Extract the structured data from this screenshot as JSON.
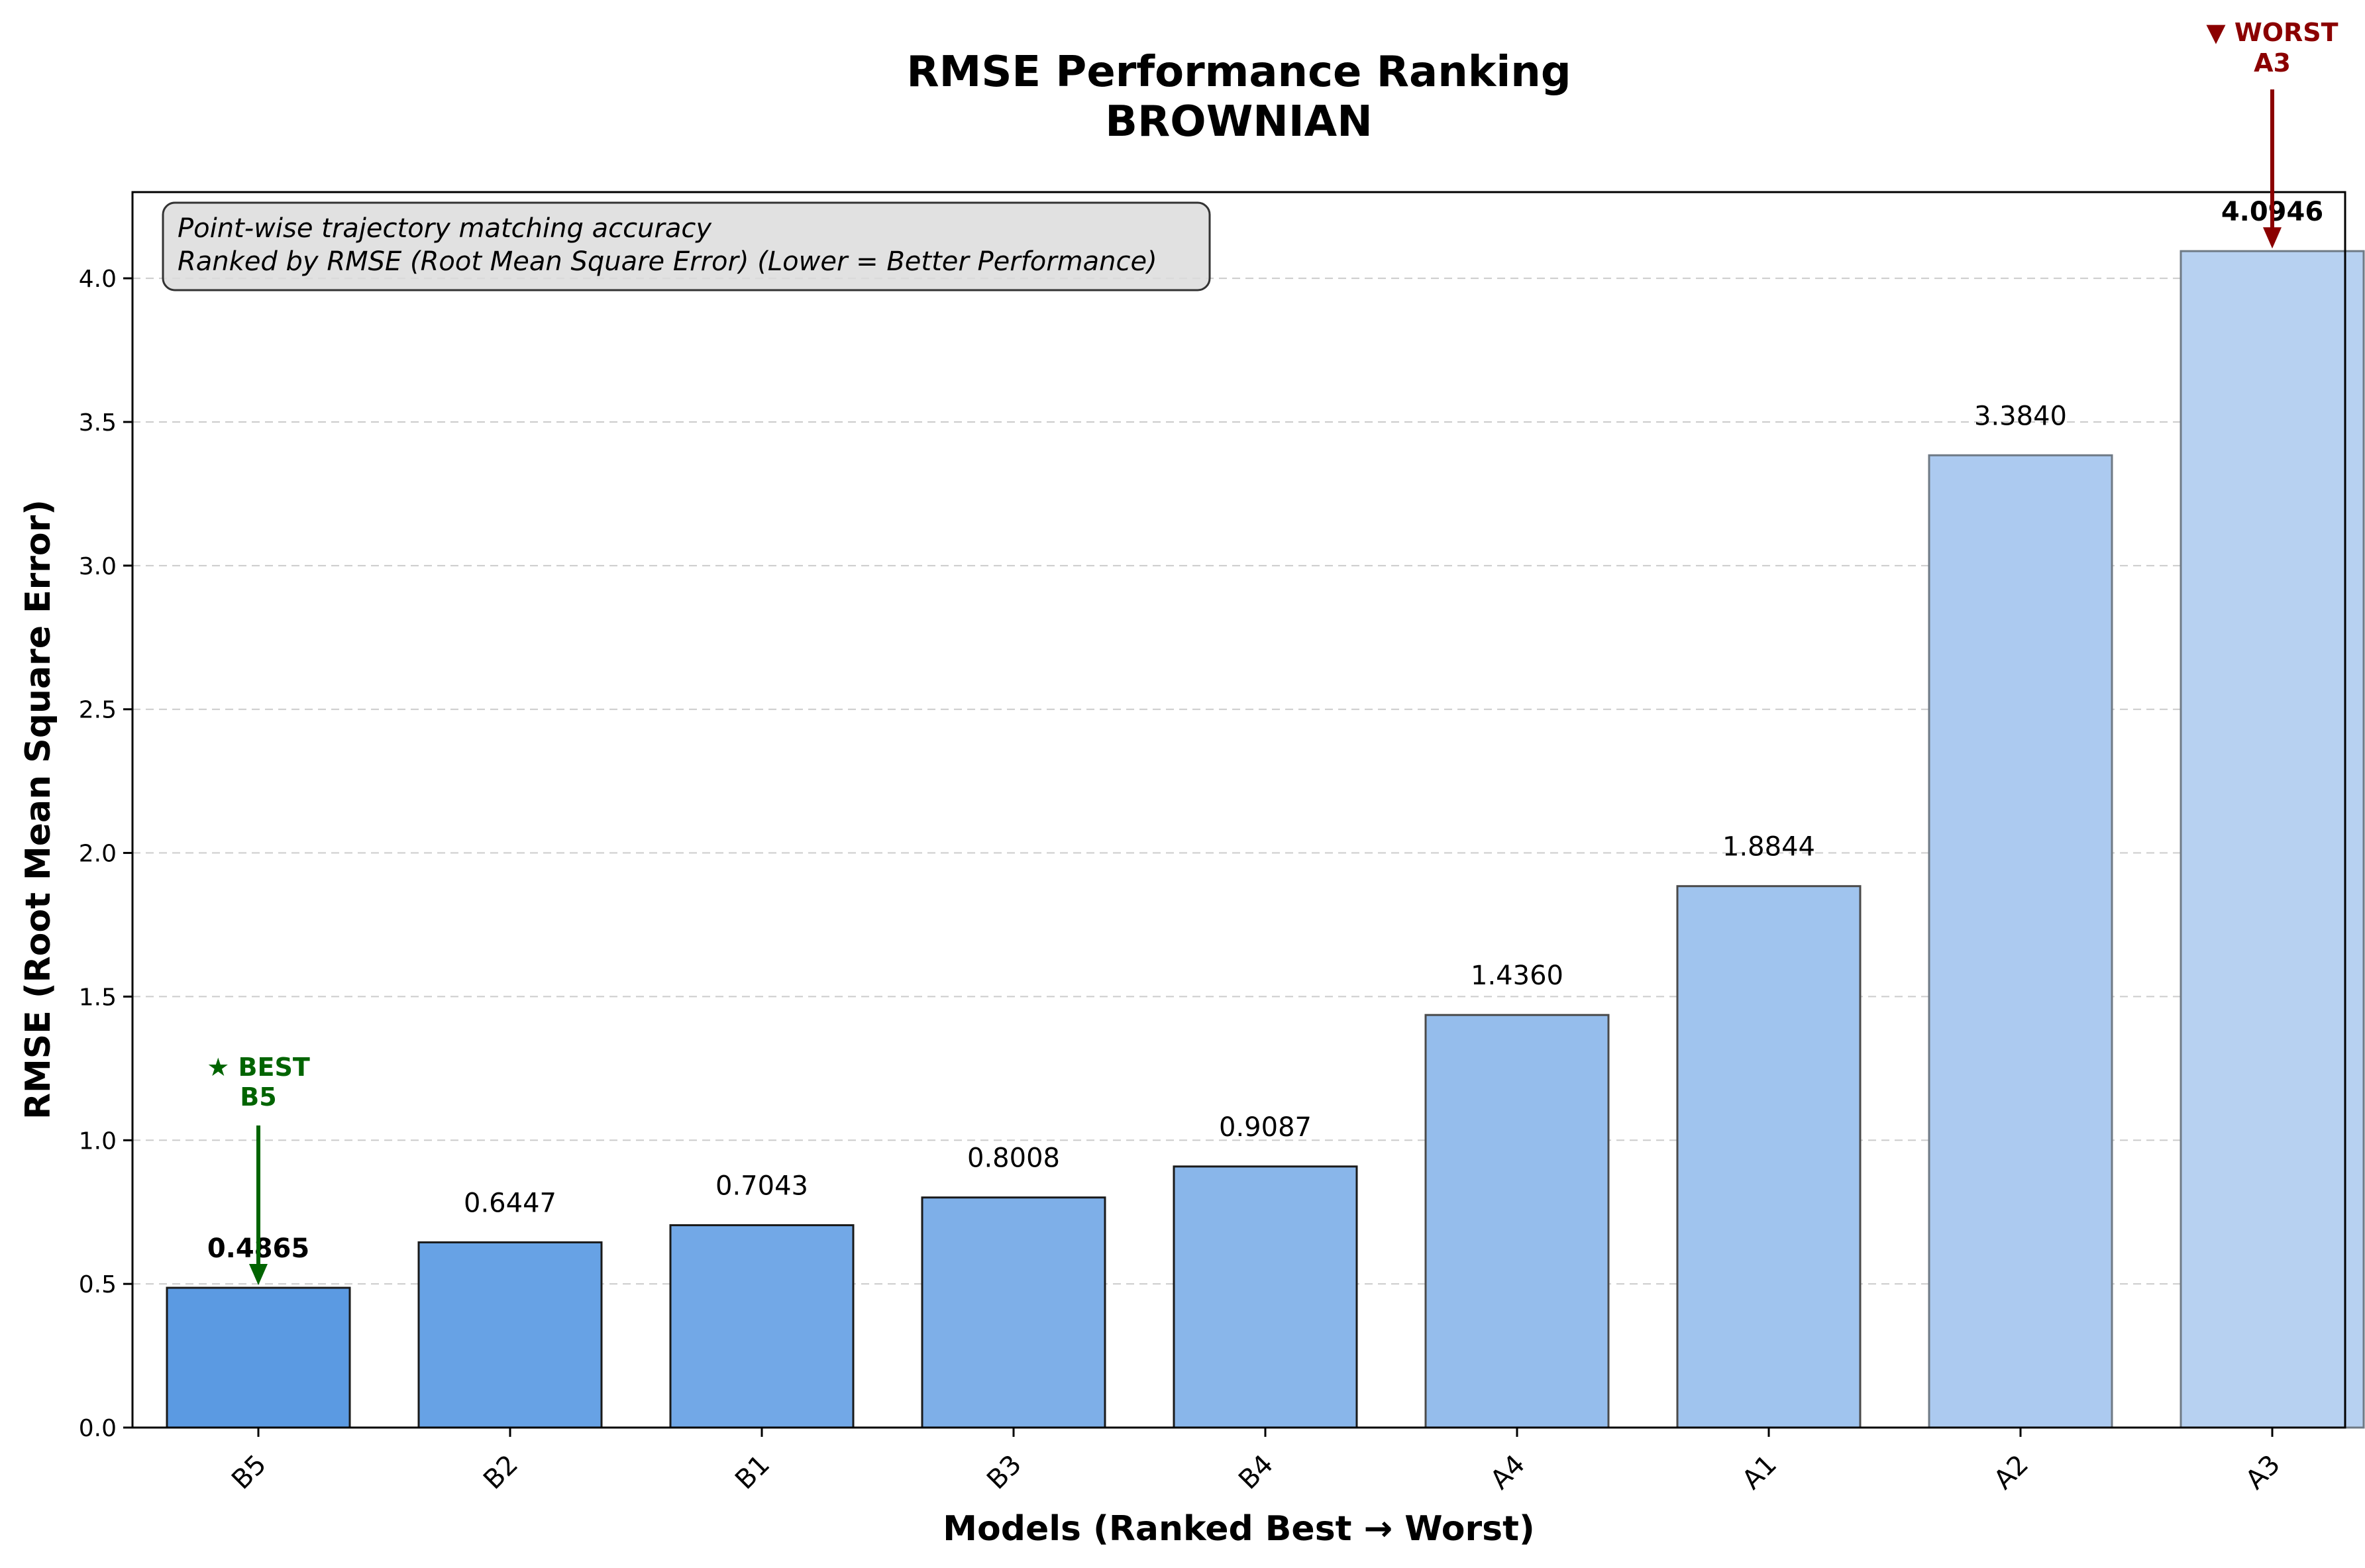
{
  "chart_data": {
    "type": "bar",
    "title": "RMSE Performance Ranking",
    "subtitle": "BROWNIAN",
    "xlabel": "Models (Ranked Best → Worst)",
    "ylabel": "RMSE (Root Mean Square Error)",
    "categories": [
      "B5",
      "B2",
      "B1",
      "B3",
      "B4",
      "A4",
      "A1",
      "A2",
      "A3"
    ],
    "values": [
      0.4865,
      0.6447,
      0.7043,
      0.8008,
      0.9087,
      1.436,
      1.8844,
      3.384,
      4.0946
    ],
    "value_labels": [
      "0.4865",
      "0.6447",
      "0.7043",
      "0.8008",
      "0.9087",
      "1.4360",
      "1.8844",
      "3.3840",
      "4.0946"
    ],
    "bar_colors": [
      "#5b9ae2",
      "#67a2e5",
      "#72a8e7",
      "#7eafe8",
      "#89b6ea",
      "#95bdec",
      "#a0c4ee",
      "#accaf0",
      "#b7d1f1"
    ],
    "ylim": [
      0,
      4.3
    ],
    "yticks": [
      0.0,
      0.5,
      1.0,
      1.5,
      2.0,
      2.5,
      3.0,
      3.5,
      4.0
    ],
    "ytick_labels": [
      "0.0",
      "0.5",
      "1.0",
      "1.5",
      "2.0",
      "2.5",
      "3.0",
      "3.5",
      "4.0"
    ],
    "grid": "y-dashed",
    "info_box": {
      "line1": "Point-wise trajectory matching accuracy",
      "line2": "Ranked by RMSE (Root Mean Square Error) (Lower = Better Performance)"
    },
    "best_annotation": {
      "line1": "★ BEST",
      "line2": "B5",
      "color": "#006400"
    },
    "worst_annotation": {
      "line1": "▼ WORST",
      "line2": "A3",
      "color": "#8b0000"
    }
  }
}
